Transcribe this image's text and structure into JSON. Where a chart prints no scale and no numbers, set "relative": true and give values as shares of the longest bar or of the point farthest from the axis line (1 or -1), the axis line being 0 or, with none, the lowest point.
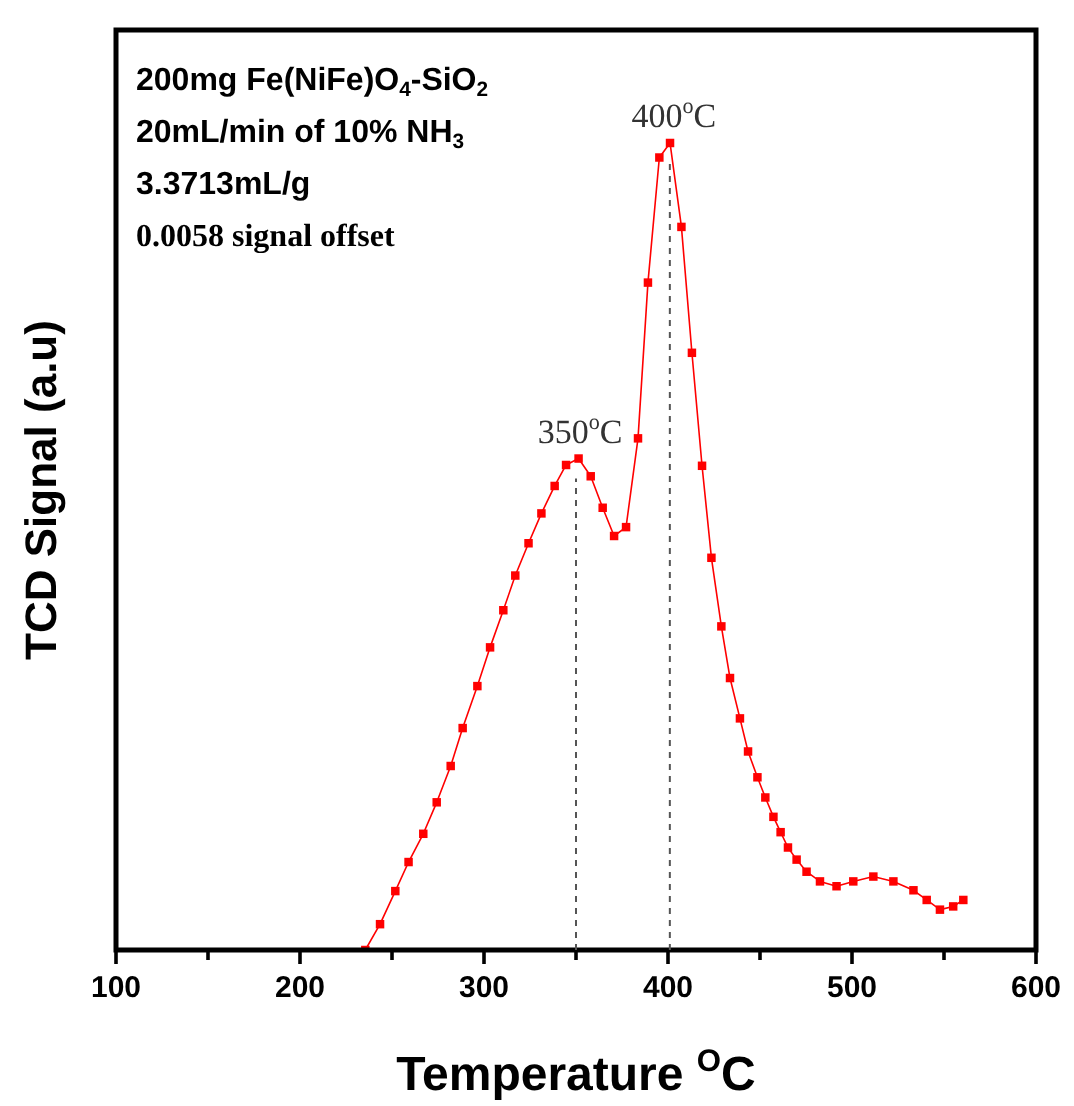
{
  "chart_data": {
    "type": "line",
    "xlabel": "Temperature $^{O}$C",
    "ylabel": "TCD Signal (a.u)",
    "relative": true,
    "xlim": [
      100,
      600
    ],
    "xticks": [
      100,
      {
        "value": 150,
        "label": null
      },
      200,
      {
        "value": 250,
        "label": null
      },
      300,
      {
        "value": 350,
        "label": null
      },
      400,
      {
        "value": 450,
        "label": null
      },
      500,
      {
        "value": 550,
        "label": null
      },
      600
    ],
    "annotations": [
      "200mg Fe(NiFe)O$_{4}$-SiO$_{2}$",
      "20mL/min of 10% NH$_{3}$",
      "3.3713mL/g",
      "0.0058 signal offset"
    ],
    "ref_lines": [
      {
        "axis": "x",
        "value": 350,
        "label": "350$^{o}$C",
        "line_style": "dashed"
      },
      {
        "axis": "x",
        "value": 401,
        "label": "400$^{o}$C",
        "line_style": "dashed"
      }
    ],
    "marker": "square",
    "line_style": "solid",
    "series": [
      {
        "color": "#ff0000",
        "x": [
          235.5,
          243.5,
          251.8,
          259,
          267,
          274.3,
          281.9,
          288.4,
          296.4,
          303.3,
          310.5,
          317,
          324.2,
          331.2,
          338.4,
          344.6,
          351.4,
          358,
          364.5,
          370.7,
          377.2,
          383.7,
          389.1,
          395.3,
          401.1,
          407.3,
          413,
          418.5,
          423.6,
          429,
          433.7,
          439.1,
          443.5,
          448.6,
          452.9,
          457.3,
          461.2,
          465.2,
          469.9,
          475.3,
          482.6,
          491.6,
          500.7,
          511.6,
          522.5,
          533.4,
          540.6,
          547.8,
          555,
          560.5
        ],
        "values": [
          0,
          0.032,
          0.073,
          0.109,
          0.144,
          0.183,
          0.228,
          0.275,
          0.327,
          0.375,
          0.421,
          0.464,
          0.504,
          0.541,
          0.575,
          0.601,
          0.609,
          0.587,
          0.548,
          0.513,
          0.524,
          0.634,
          0.827,
          0.982,
          1,
          0.896,
          0.74,
          0.6,
          0.486,
          0.401,
          0.337,
          0.287,
          0.246,
          0.214,
          0.189,
          0.165,
          0.146,
          0.127,
          0.112,
          0.097,
          0.085,
          0.079,
          0.085,
          0.091,
          0.085,
          0.074,
          0.062,
          0.05,
          0.054,
          0.062
        ]
      }
    ]
  }
}
